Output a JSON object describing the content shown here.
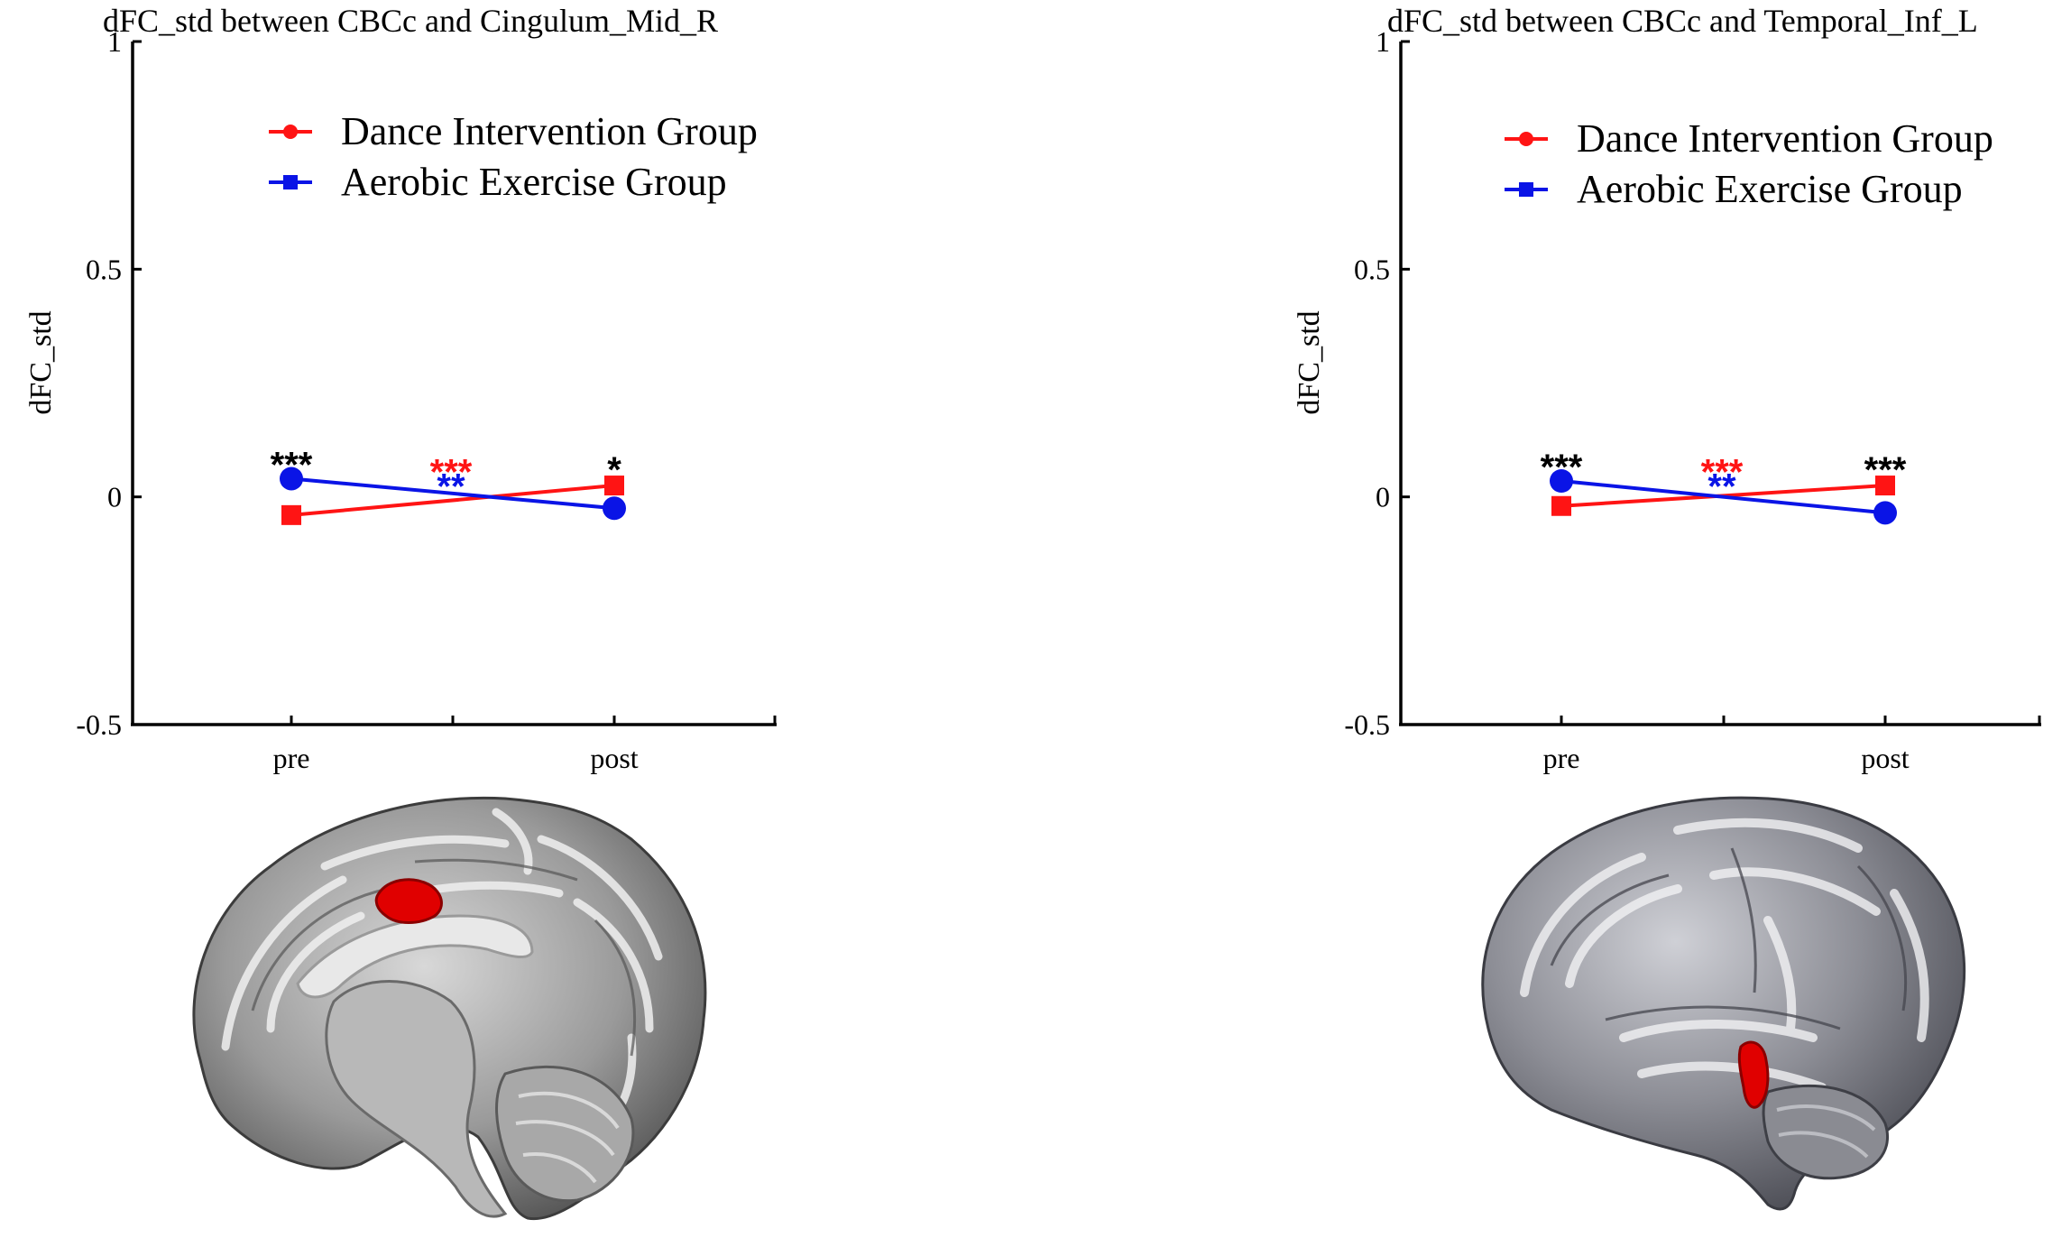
{
  "colors": {
    "dance": "#ff1414",
    "aerobic": "#0a14e6",
    "sig_black": "#000000"
  },
  "chart_data": [
    {
      "type": "line",
      "title": "dFC_std between CBCc and Cingulum_Mid_R",
      "ylabel": "dFC_std",
      "xlabel": "",
      "categories": [
        "pre",
        "post"
      ],
      "ylim": [
        -0.5,
        1
      ],
      "y_ticks": [
        "-0.5",
        "0",
        "0.5",
        "1"
      ],
      "legend_position": "top-right",
      "grid": false,
      "series": [
        {
          "name": "Dance Intervention Group",
          "values": [
            -0.04,
            0.025
          ],
          "marker": "square",
          "color": "#ff1414"
        },
        {
          "name": "Aerobic Exercise Group",
          "values": [
            0.04,
            -0.025
          ],
          "marker": "circle",
          "color": "#0a14e6"
        }
      ],
      "legend_markers": [
        "circle",
        "square"
      ],
      "annotations": {
        "pre": "***",
        "post": "*",
        "interaction_dance": "***",
        "interaction_aerobic": "**"
      }
    },
    {
      "type": "line",
      "title": "dFC_std between CBCc and Temporal_Inf_L",
      "ylabel": "dFC_std",
      "xlabel": "",
      "categories": [
        "pre",
        "post"
      ],
      "ylim": [
        -0.5,
        1
      ],
      "y_ticks": [
        "-0.5",
        "0",
        "0.5",
        "1"
      ],
      "legend_position": "top-right",
      "grid": false,
      "series": [
        {
          "name": "Dance Intervention Group",
          "values": [
            -0.02,
            0.025
          ],
          "marker": "square",
          "color": "#ff1414"
        },
        {
          "name": "Aerobic Exercise Group",
          "values": [
            0.035,
            -0.035
          ],
          "marker": "circle",
          "color": "#0a14e6"
        }
      ],
      "legend_markers": [
        "circle",
        "square"
      ],
      "annotations": {
        "pre": "***",
        "post": "***",
        "interaction_dance": "***",
        "interaction_aerobic": "**"
      }
    }
  ],
  "brain_images": [
    {
      "view": "medial-sagittal",
      "highlight": "Cingulum_Mid_R"
    },
    {
      "view": "lateral-left",
      "highlight": "Temporal_Inf_L"
    }
  ]
}
